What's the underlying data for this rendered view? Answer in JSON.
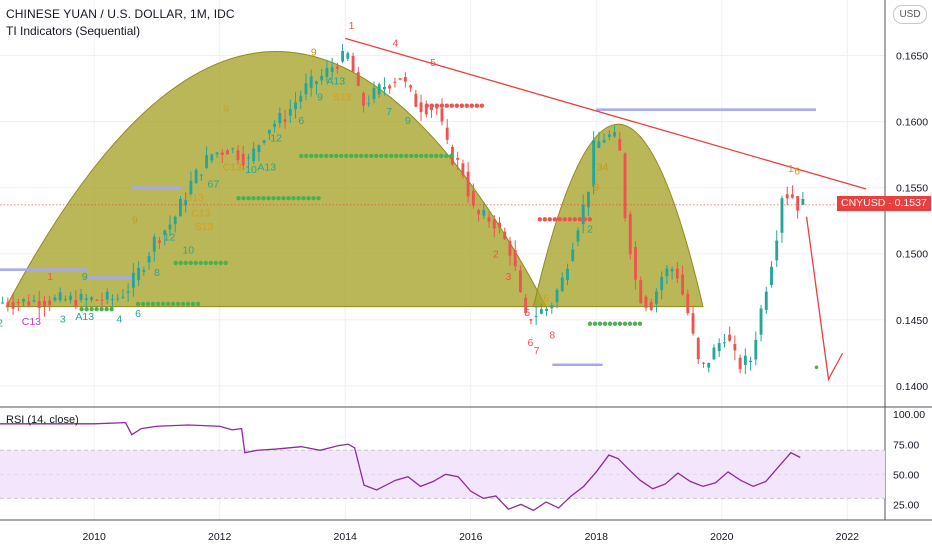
{
  "header": {
    "title": "CHINESE YUAN / U.S. DOLLAR, 1M, IDC",
    "indicator": "TI Indicators (Sequential)",
    "currency_button": "USD"
  },
  "price_tag": {
    "label": "CNYUSD · 0.1537",
    "value": 0.1537,
    "color": "#e8403f"
  },
  "rsi": {
    "label": "RSI (14, close)",
    "ticks": [
      "100.00",
      "75.00",
      "50.00",
      "25.00"
    ],
    "band": [
      30,
      70
    ]
  },
  "colors": {
    "up": "#26a69a",
    "down": "#ef5350",
    "cup_fill": "#a9a52e",
    "trendline": "#e8403f",
    "support_lines": "#a6a6f5",
    "rsi_line": "#8e2a9c",
    "rsi_band": "#f3e6fc",
    "dots_green": "#4caf50",
    "dots_red": "#ef5350"
  },
  "chart_data": [
    {
      "type": "candlestick",
      "title": "CHINESE YUAN / U.S. DOLLAR, 1M, IDC",
      "x_ticks": [
        "2010",
        "2012",
        "2014",
        "2016",
        "2018",
        "2020",
        "2022"
      ],
      "y_ticks": [
        "0.1650",
        "0.1600",
        "0.1550",
        "0.1500",
        "0.1450",
        "0.1400"
      ],
      "ylim": [
        0.1384,
        0.1692
      ],
      "xlim": [
        2008.5,
        2022.6
      ],
      "last_close": 0.1537,
      "price_path": [
        [
          2008.5,
          0.1463
        ],
        [
          2009.0,
          0.1464
        ],
        [
          2009.5,
          0.1465
        ],
        [
          2010.0,
          0.1465
        ],
        [
          2010.4,
          0.1466
        ],
        [
          2010.6,
          0.1475
        ],
        [
          2010.8,
          0.149
        ],
        [
          2011.0,
          0.151
        ],
        [
          2011.3,
          0.1525
        ],
        [
          2011.6,
          0.1555
        ],
        [
          2011.9,
          0.1575
        ],
        [
          2012.2,
          0.158
        ],
        [
          2012.5,
          0.157
        ],
        [
          2012.8,
          0.1595
        ],
        [
          2013.1,
          0.1605
        ],
        [
          2013.4,
          0.1625
        ],
        [
          2013.7,
          0.1635
        ],
        [
          2013.9,
          0.1645
        ],
        [
          2014.1,
          0.165
        ],
        [
          2014.3,
          0.1612
        ],
        [
          2014.6,
          0.1625
        ],
        [
          2014.9,
          0.1635
        ],
        [
          2015.2,
          0.1612
        ],
        [
          2015.5,
          0.161
        ],
        [
          2015.7,
          0.1575
        ],
        [
          2015.9,
          0.1565
        ],
        [
          2016.1,
          0.153
        ],
        [
          2016.4,
          0.1525
        ],
        [
          2016.7,
          0.15
        ],
        [
          2016.9,
          0.145
        ],
        [
          2017.1,
          0.1455
        ],
        [
          2017.3,
          0.146
        ],
        [
          2017.5,
          0.148
        ],
        [
          2017.7,
          0.1515
        ],
        [
          2017.9,
          0.1545
        ],
        [
          2018.0,
          0.158
        ],
        [
          2018.2,
          0.159
        ],
        [
          2018.4,
          0.1585
        ],
        [
          2018.5,
          0.153
        ],
        [
          2018.7,
          0.147
        ],
        [
          2018.9,
          0.146
        ],
        [
          2019.1,
          0.1485
        ],
        [
          2019.3,
          0.149
        ],
        [
          2019.5,
          0.1455
        ],
        [
          2019.7,
          0.141
        ],
        [
          2019.9,
          0.1425
        ],
        [
          2020.1,
          0.144
        ],
        [
          2020.3,
          0.1415
        ],
        [
          2020.5,
          0.142
        ],
        [
          2020.7,
          0.1465
        ],
        [
          2020.9,
          0.151
        ],
        [
          2021.0,
          0.1545
        ],
        [
          2021.15,
          0.1545
        ],
        [
          2021.25,
          0.1537
        ]
      ],
      "cups": [
        {
          "x": [
            2008.6,
            2017.2
          ],
          "peak": 0.1653,
          "base": 0.146
        },
        {
          "x": [
            2017.0,
            2019.7
          ],
          "peak": 0.1598,
          "base": 0.146
        }
      ],
      "trendline": {
        "x": [
          2014.0,
          2022.3
        ],
        "y": [
          0.1663,
          0.1549
        ]
      },
      "projection_arrow": {
        "x": [
          2021.35,
          2021.7
        ],
        "y": [
          0.1528,
          0.1405
        ]
      },
      "support_lines": [
        {
          "x": [
            2008.5,
            2009.9
          ],
          "y": 0.1488
        },
        {
          "x": [
            2010.6,
            2011.4
          ],
          "y": 0.155
        },
        {
          "x": [
            2009.9,
            2010.6
          ],
          "y": 0.1482
        },
        {
          "x": [
            2017.3,
            2018.1
          ],
          "y": 0.1416
        },
        {
          "x": [
            2018.0,
            2021.5
          ],
          "y": 0.1609
        }
      ],
      "dot_lines": [
        {
          "x": [
            2009.8,
            2010.3
          ],
          "y": 0.1458,
          "color": "green"
        },
        {
          "x": [
            2010.7,
            2011.7
          ],
          "y": 0.1462,
          "color": "green"
        },
        {
          "x": [
            2011.3,
            2012.1
          ],
          "y": 0.1493,
          "color": "green"
        },
        {
          "x": [
            2012.3,
            2013.6
          ],
          "y": 0.1542,
          "color": "green"
        },
        {
          "x": [
            2013.3,
            2015.7
          ],
          "y": 0.1574,
          "color": "green"
        },
        {
          "x": [
            2015.3,
            2016.2
          ],
          "y": 0.1612,
          "color": "red"
        },
        {
          "x": [
            2017.1,
            2017.9
          ],
          "y": 0.1526,
          "color": "red"
        },
        {
          "x": [
            2017.9,
            2018.7
          ],
          "y": 0.1447,
          "color": "green"
        }
      ],
      "sequential_labels": [
        {
          "t": "2",
          "x": 2008.5,
          "y": 0.1445,
          "c": "#26a69a"
        },
        {
          "t": "C13",
          "x": 2009.0,
          "y": 0.1446,
          "c": "#c23dd0"
        },
        {
          "t": "3",
          "x": 2009.5,
          "y": 0.1448,
          "c": "#26a69a"
        },
        {
          "t": "A13",
          "x": 2009.85,
          "y": 0.145,
          "c": "#26a69a"
        },
        {
          "t": "9",
          "x": 2009.85,
          "y": 0.148,
          "c": "#26a69a"
        },
        {
          "t": "4",
          "x": 2010.4,
          "y": 0.1448,
          "c": "#26a69a"
        },
        {
          "t": "6",
          "x": 2010.7,
          "y": 0.1452,
          "c": "#26a69a"
        },
        {
          "t": "9",
          "x": 2010.65,
          "y": 0.1523,
          "c": "#b8a020"
        },
        {
          "t": "1",
          "x": 2009.3,
          "y": 0.148,
          "c": "#ef5350"
        },
        {
          "t": "8",
          "x": 2011.0,
          "y": 0.1483,
          "c": "#26a69a"
        },
        {
          "t": "12",
          "x": 2011.2,
          "y": 0.151,
          "c": "#26a69a"
        },
        {
          "t": "10",
          "x": 2011.5,
          "y": 0.15,
          "c": "#26a69a"
        },
        {
          "t": "S13",
          "x": 2011.6,
          "y": 0.154,
          "c": "#d4a020"
        },
        {
          "t": "C13",
          "x": 2011.7,
          "y": 0.1528,
          "c": "#d4a020"
        },
        {
          "t": "S13",
          "x": 2011.75,
          "y": 0.1518,
          "c": "#d4a020"
        },
        {
          "t": "67",
          "x": 2011.9,
          "y": 0.155,
          "c": "#26a69a"
        },
        {
          "t": "C13",
          "x": 2012.2,
          "y": 0.1563,
          "c": "#c8a020"
        },
        {
          "t": "10",
          "x": 2012.5,
          "y": 0.1561,
          "c": "#26a69a"
        },
        {
          "t": "A13",
          "x": 2012.75,
          "y": 0.1563,
          "c": "#26a69a"
        },
        {
          "t": "12",
          "x": 2012.9,
          "y": 0.1585,
          "c": "#26a69a"
        },
        {
          "t": "6",
          "x": 2013.3,
          "y": 0.1598,
          "c": "#26a69a"
        },
        {
          "t": "9",
          "x": 2013.6,
          "y": 0.1616,
          "c": "#26a69a"
        },
        {
          "t": "9",
          "x": 2012.1,
          "y": 0.1607,
          "c": "#d4a020"
        },
        {
          "t": "9",
          "x": 2013.5,
          "y": 0.165,
          "c": "#b8a020"
        },
        {
          "t": "A13",
          "x": 2013.85,
          "y": 0.1628,
          "c": "#26a69a"
        },
        {
          "t": "S13",
          "x": 2013.95,
          "y": 0.1616,
          "c": "#d4a020"
        },
        {
          "t": "1",
          "x": 2014.1,
          "y": 0.167,
          "c": "#ef5350"
        },
        {
          "t": "9",
          "x": 2015.0,
          "y": 0.1598,
          "c": "#26a69a"
        },
        {
          "t": "7",
          "x": 2014.7,
          "y": 0.1605,
          "c": "#26a69a"
        },
        {
          "t": "4",
          "x": 2014.8,
          "y": 0.1657,
          "c": "#ef5350"
        },
        {
          "t": "5",
          "x": 2015.4,
          "y": 0.1642,
          "c": "#ef5350"
        },
        {
          "t": "2",
          "x": 2016.4,
          "y": 0.1497,
          "c": "#ef5350"
        },
        {
          "t": "3",
          "x": 2016.6,
          "y": 0.148,
          "c": "#ef5350"
        },
        {
          "t": "5",
          "x": 2016.9,
          "y": 0.1453,
          "c": "#ef5350"
        },
        {
          "t": "6",
          "x": 2016.95,
          "y": 0.143,
          "c": "#ef5350"
        },
        {
          "t": "7",
          "x": 2017.05,
          "y": 0.1424,
          "c": "#ef5350"
        },
        {
          "t": "8",
          "x": 2017.3,
          "y": 0.1436,
          "c": "#ef5350"
        },
        {
          "t": "6",
          "x": 2017.2,
          "y": 0.1464,
          "c": "#d4a020"
        },
        {
          "t": "9",
          "x": 2018.0,
          "y": 0.1548,
          "c": "#b8a020"
        },
        {
          "t": "34",
          "x": 2018.1,
          "y": 0.1563,
          "c": "#b8a020"
        },
        {
          "t": "2",
          "x": 2017.9,
          "y": 0.1516,
          "c": "#26a69a"
        },
        {
          "t": "1",
          "x": 2021.1,
          "y": 0.1562,
          "c": "#b8a020"
        },
        {
          "t": "6",
          "x": 2021.2,
          "y": 0.156,
          "c": "#d4a020"
        }
      ]
    },
    {
      "type": "line",
      "title": "RSI (14, close)",
      "ylim": [
        12,
        106
      ],
      "y_ticks": [
        100,
        75,
        50,
        25
      ],
      "series": [
        {
          "name": "RSI",
          "x": [
            2008.5,
            2009.0,
            2009.5,
            2010.0,
            2010.5,
            2010.6,
            2010.75,
            2011.0,
            2011.5,
            2012.0,
            2012.2,
            2012.35,
            2012.4,
            2012.6,
            2012.9,
            2013.3,
            2013.6,
            2013.9,
            2014.05,
            2014.15,
            2014.3,
            2014.5,
            2014.8,
            2015.0,
            2015.2,
            2015.4,
            2015.6,
            2015.8,
            2016.0,
            2016.2,
            2016.4,
            2016.6,
            2016.8,
            2017.0,
            2017.2,
            2017.4,
            2017.6,
            2017.8,
            2018.0,
            2018.2,
            2018.35,
            2018.5,
            2018.7,
            2018.9,
            2019.1,
            2019.3,
            2019.5,
            2019.7,
            2019.9,
            2020.1,
            2020.3,
            2020.5,
            2020.7,
            2020.9,
            2021.1,
            2021.25
          ],
          "y": [
            92,
            92,
            92,
            92,
            93,
            83,
            88,
            90,
            91,
            90,
            87,
            88,
            68,
            70,
            71,
            73,
            70,
            74,
            75,
            72,
            41,
            37,
            45,
            48,
            40,
            44,
            50,
            48,
            36,
            30,
            32,
            21,
            25,
            20,
            27,
            22,
            32,
            40,
            52,
            66,
            63,
            55,
            45,
            38,
            42,
            51,
            44,
            40,
            43,
            52,
            45,
            40,
            44,
            56,
            68,
            64
          ]
        }
      ]
    }
  ]
}
